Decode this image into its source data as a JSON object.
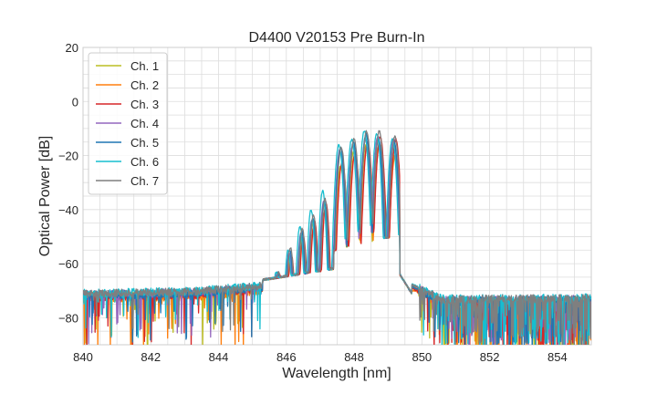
{
  "chart_data": {
    "type": "line",
    "title": "D4400 V20153 Pre Burn-In",
    "xlabel": "Wavelength [nm]",
    "ylabel": "Optical Power [dB]",
    "xlim": [
      840,
      855
    ],
    "ylim": [
      -90,
      20
    ],
    "xticks": [
      840,
      842,
      844,
      846,
      848,
      850,
      852,
      854
    ],
    "yticks": [
      -80,
      -60,
      -40,
      -20,
      0,
      20
    ],
    "grid": true,
    "legend_position": "top-left",
    "series": [
      {
        "name": "Ch. 1",
        "color": "#bcbd22",
        "offset": 0.0,
        "peak_shift": 0.0,
        "peaks": [
          -64,
          -57,
          -51,
          -45,
          -38,
          -24,
          -19,
          -16,
          -17,
          -20
        ],
        "floor_noise": 9
      },
      {
        "name": "Ch. 2",
        "color": "#ff7f0e",
        "offset": -1.0,
        "peak_shift": 0.03,
        "peaks": [
          -64,
          -58,
          -51,
          -46,
          -40,
          -24,
          -20,
          -17,
          -16,
          -20
        ],
        "floor_noise": 11
      },
      {
        "name": "Ch. 3",
        "color": "#d62728",
        "offset": -0.5,
        "peak_shift": 0.05,
        "peaks": [
          -64,
          -57,
          -50,
          -44,
          -38,
          -22,
          -19,
          -15,
          -13,
          -14
        ],
        "floor_noise": 8
      },
      {
        "name": "Ch. 4",
        "color": "#9467bd",
        "offset": 0.5,
        "peak_shift": -0.02,
        "peaks": [
          -63,
          -56,
          -49,
          -44,
          -37,
          -18,
          -16,
          -14,
          -13,
          -14
        ],
        "floor_noise": 7
      },
      {
        "name": "Ch. 5",
        "color": "#1f77b4",
        "offset": 0.2,
        "peak_shift": 0.0,
        "peaks": [
          -63,
          -55,
          -48,
          -43,
          -37,
          -17,
          -15,
          -12,
          -14,
          -15
        ],
        "floor_noise": 7
      },
      {
        "name": "Ch. 6",
        "color": "#17becf",
        "offset": 1.0,
        "peak_shift": -0.05,
        "peaks": [
          -63,
          -55,
          -46,
          -40,
          -33,
          -16,
          -14,
          -11,
          -12,
          -14
        ],
        "floor_noise": 7
      },
      {
        "name": "Ch. 7",
        "color": "#7f7f7f",
        "offset": 0.8,
        "peak_shift": 0.02,
        "peaks": [
          -63,
          -54,
          -47,
          -42,
          -36,
          -17,
          -14,
          -11,
          -11,
          -13
        ],
        "floor_noise": 6
      }
    ]
  }
}
